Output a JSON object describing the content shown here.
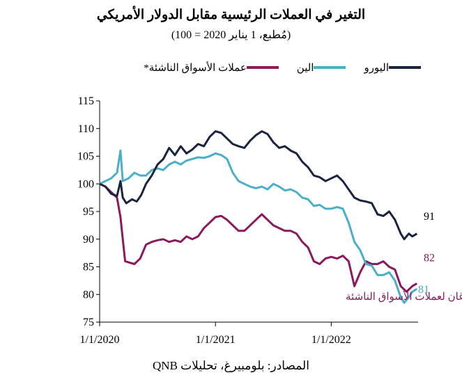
{
  "chart_data": {
    "type": "line",
    "title": "التغير في العملات الرئيسية مقابل الدولار الأمريكي",
    "subtitle": "(مُطبع، 1 يناير 2020 = 100)",
    "xlabel": "",
    "ylabel": "",
    "ylim": [
      75,
      115
    ],
    "yticks": [
      75,
      80,
      85,
      90,
      95,
      100,
      105,
      110,
      115
    ],
    "xlim": [
      2020.0,
      2022.75
    ],
    "xticks": [
      {
        "value": 2020.0,
        "label": "1/1/2020"
      },
      {
        "value": 2021.0,
        "label": "1/1/2021"
      },
      {
        "value": 2022.0,
        "label": "1/1/2022"
      }
    ],
    "grid": false,
    "legend_position": "top",
    "series": [
      {
        "name": "اليورو",
        "color": "#1a2340",
        "end_label": "91",
        "points": [
          [
            2020.0,
            100
          ],
          [
            2020.05,
            99.5
          ],
          [
            2020.1,
            98.2
          ],
          [
            2020.15,
            97.8
          ],
          [
            2020.18,
            100.5
          ],
          [
            2020.2,
            97.5
          ],
          [
            2020.23,
            96.5
          ],
          [
            2020.28,
            97.2
          ],
          [
            2020.32,
            96.8
          ],
          [
            2020.36,
            98
          ],
          [
            2020.4,
            100
          ],
          [
            2020.45,
            101.5
          ],
          [
            2020.5,
            103.5
          ],
          [
            2020.55,
            104.5
          ],
          [
            2020.6,
            106.5
          ],
          [
            2020.65,
            105.2
          ],
          [
            2020.7,
            106.8
          ],
          [
            2020.75,
            105.5
          ],
          [
            2020.8,
            106.2
          ],
          [
            2020.85,
            107.2
          ],
          [
            2020.9,
            106.8
          ],
          [
            2020.95,
            108.5
          ],
          [
            2021.0,
            109.5
          ],
          [
            2021.05,
            109.2
          ],
          [
            2021.1,
            108.2
          ],
          [
            2021.15,
            107.2
          ],
          [
            2021.2,
            106.8
          ],
          [
            2021.25,
            106.5
          ],
          [
            2021.3,
            107.8
          ],
          [
            2021.35,
            108.8
          ],
          [
            2021.4,
            109.5
          ],
          [
            2021.45,
            109
          ],
          [
            2021.5,
            107.5
          ],
          [
            2021.55,
            106.5
          ],
          [
            2021.6,
            106.8
          ],
          [
            2021.65,
            106
          ],
          [
            2021.7,
            105.5
          ],
          [
            2021.75,
            104
          ],
          [
            2021.8,
            103
          ],
          [
            2021.85,
            101.5
          ],
          [
            2021.9,
            101.2
          ],
          [
            2021.95,
            100.5
          ],
          [
            2022.0,
            101
          ],
          [
            2022.05,
            101.5
          ],
          [
            2022.1,
            100.5
          ],
          [
            2022.15,
            99
          ],
          [
            2022.2,
            97.5
          ],
          [
            2022.25,
            97
          ],
          [
            2022.3,
            96.8
          ],
          [
            2022.35,
            96.5
          ],
          [
            2022.4,
            94.5
          ],
          [
            2022.45,
            94.2
          ],
          [
            2022.5,
            95
          ],
          [
            2022.55,
            93.5
          ],
          [
            2022.6,
            91
          ],
          [
            2022.63,
            90
          ],
          [
            2022.67,
            91
          ],
          [
            2022.7,
            90.5
          ],
          [
            2022.74,
            91
          ]
        ]
      },
      {
        "name": "الين",
        "color": "#4aafc8",
        "end_label": "81",
        "points": [
          [
            2020.0,
            100
          ],
          [
            2020.05,
            100.5
          ],
          [
            2020.1,
            101
          ],
          [
            2020.15,
            102
          ],
          [
            2020.18,
            106
          ],
          [
            2020.2,
            100.5
          ],
          [
            2020.25,
            101
          ],
          [
            2020.3,
            102
          ],
          [
            2020.35,
            101.5
          ],
          [
            2020.4,
            101.5
          ],
          [
            2020.45,
            102.5
          ],
          [
            2020.5,
            102.8
          ],
          [
            2020.55,
            102.5
          ],
          [
            2020.6,
            103.5
          ],
          [
            2020.65,
            104
          ],
          [
            2020.7,
            103.5
          ],
          [
            2020.75,
            104.2
          ],
          [
            2020.8,
            104.5
          ],
          [
            2020.85,
            104.8
          ],
          [
            2020.9,
            104.7
          ],
          [
            2020.95,
            105
          ],
          [
            2021.0,
            105.5
          ],
          [
            2021.05,
            105.2
          ],
          [
            2021.1,
            104.5
          ],
          [
            2021.15,
            102
          ],
          [
            2021.2,
            100.5
          ],
          [
            2021.25,
            100
          ],
          [
            2021.3,
            99.5
          ],
          [
            2021.35,
            99.2
          ],
          [
            2021.4,
            99.5
          ],
          [
            2021.45,
            99
          ],
          [
            2021.5,
            100
          ],
          [
            2021.55,
            99.5
          ],
          [
            2021.6,
            98.8
          ],
          [
            2021.65,
            99
          ],
          [
            2021.7,
            98.5
          ],
          [
            2021.75,
            97.5
          ],
          [
            2021.8,
            97.2
          ],
          [
            2021.85,
            96
          ],
          [
            2021.9,
            96.2
          ],
          [
            2021.95,
            95.5
          ],
          [
            2022.0,
            95.5
          ],
          [
            2022.05,
            95.8
          ],
          [
            2022.1,
            95.5
          ],
          [
            2022.15,
            93
          ],
          [
            2022.2,
            89.5
          ],
          [
            2022.25,
            88
          ],
          [
            2022.3,
            85.5
          ],
          [
            2022.35,
            85.2
          ],
          [
            2022.4,
            83.5
          ],
          [
            2022.45,
            83.5
          ],
          [
            2022.5,
            84
          ],
          [
            2022.55,
            82.5
          ],
          [
            2022.6,
            79.5
          ],
          [
            2022.63,
            78.5
          ],
          [
            2022.67,
            79.5
          ],
          [
            2022.7,
            80.5
          ],
          [
            2022.74,
            81
          ]
        ]
      },
      {
        "name": "عملات الأسواق الناشئة*",
        "color": "#8b1a5c",
        "end_label": "82",
        "points": [
          [
            2020.0,
            100
          ],
          [
            2020.05,
            99.5
          ],
          [
            2020.1,
            98.5
          ],
          [
            2020.15,
            97.5
          ],
          [
            2020.18,
            94
          ],
          [
            2020.2,
            90
          ],
          [
            2020.22,
            86
          ],
          [
            2020.25,
            85.8
          ],
          [
            2020.3,
            85.5
          ],
          [
            2020.35,
            86.5
          ],
          [
            2020.4,
            89
          ],
          [
            2020.45,
            89.5
          ],
          [
            2020.5,
            89.8
          ],
          [
            2020.55,
            90
          ],
          [
            2020.6,
            89.5
          ],
          [
            2020.65,
            89.8
          ],
          [
            2020.7,
            89.5
          ],
          [
            2020.75,
            90.5
          ],
          [
            2020.8,
            90
          ],
          [
            2020.85,
            90.5
          ],
          [
            2020.9,
            92
          ],
          [
            2020.95,
            93
          ],
          [
            2021.0,
            94
          ],
          [
            2021.05,
            94.2
          ],
          [
            2021.1,
            93.5
          ],
          [
            2021.15,
            92.5
          ],
          [
            2021.2,
            91.5
          ],
          [
            2021.25,
            91.5
          ],
          [
            2021.3,
            92.5
          ],
          [
            2021.35,
            93.5
          ],
          [
            2021.4,
            94.5
          ],
          [
            2021.45,
            93.5
          ],
          [
            2021.5,
            92.5
          ],
          [
            2021.55,
            92
          ],
          [
            2021.6,
            91.5
          ],
          [
            2021.65,
            91.5
          ],
          [
            2021.7,
            91
          ],
          [
            2021.75,
            89.5
          ],
          [
            2021.8,
            88.5
          ],
          [
            2021.85,
            86
          ],
          [
            2021.9,
            85.5
          ],
          [
            2021.95,
            86.5
          ],
          [
            2022.0,
            86.8
          ],
          [
            2022.05,
            86.5
          ],
          [
            2022.1,
            87
          ],
          [
            2022.15,
            86
          ],
          [
            2022.2,
            81.5
          ],
          [
            2022.25,
            84
          ],
          [
            2022.3,
            86
          ],
          [
            2022.35,
            85.5
          ],
          [
            2022.4,
            85.5
          ],
          [
            2022.45,
            86
          ],
          [
            2022.5,
            85
          ],
          [
            2022.55,
            84.5
          ],
          [
            2022.6,
            81.5
          ],
          [
            2022.65,
            80.5
          ],
          [
            2022.7,
            81.5
          ],
          [
            2022.74,
            82
          ]
        ]
      }
    ],
    "annotation": "*مؤشر جي بي مورغان لعملات الأسواق الناشئة",
    "source": "المصادر: بلومبيرغ، تحليلات QNB"
  }
}
